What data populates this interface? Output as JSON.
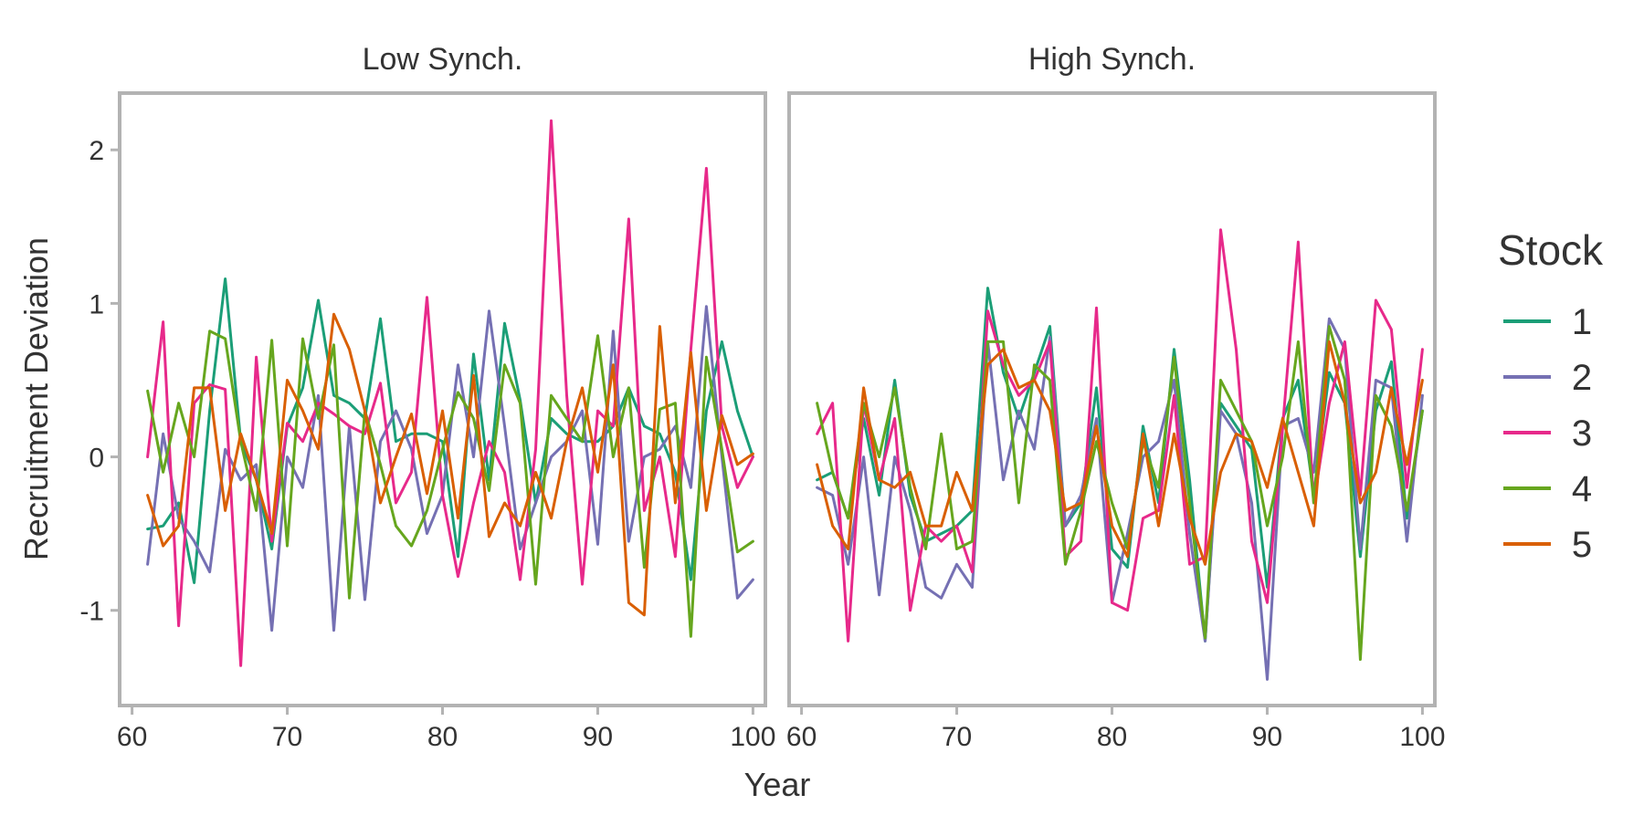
{
  "chart_data": {
    "type": "line",
    "xlabel": "Year",
    "ylabel": "Recruitment Deviation",
    "xlim": [
      59.2,
      100.8
    ],
    "ylim": [
      -1.62,
      2.37
    ],
    "x_ticks": [
      60,
      70,
      80,
      90,
      100
    ],
    "y_ticks": [
      -1,
      0,
      1,
      2
    ],
    "y_tick_labels": [
      "-1",
      "0",
      "1",
      "2"
    ],
    "grid": false,
    "legend": {
      "title": "Stock",
      "position": "right",
      "entries": [
        "1",
        "2",
        "3",
        "4",
        "5"
      ]
    },
    "colors": [
      "#1b9e77",
      "#7570b3",
      "#e7298a",
      "#66a61e",
      "#d95f02"
    ],
    "x": [
      61,
      62,
      63,
      64,
      65,
      66,
      67,
      68,
      69,
      70,
      71,
      72,
      73,
      74,
      75,
      76,
      77,
      78,
      79,
      80,
      81,
      82,
      83,
      84,
      85,
      86,
      87,
      88,
      89,
      90,
      91,
      92,
      93,
      94,
      95,
      96,
      97,
      98,
      99,
      100
    ],
    "panels": [
      {
        "title": "Low Synch.",
        "series": [
          {
            "name": "1",
            "values": [
              -0.47,
              -0.45,
              -0.3,
              -0.82,
              0.3,
              1.16,
              0.1,
              -0.15,
              -0.6,
              0.2,
              0.45,
              1.02,
              0.4,
              0.35,
              0.25,
              0.9,
              0.1,
              0.15,
              0.15,
              0.1,
              -0.65,
              0.67,
              -0.15,
              0.87,
              0.37,
              -0.3,
              0.25,
              0.15,
              0.1,
              0.1,
              0.2,
              0.45,
              0.2,
              0.15,
              -0.1,
              -0.8,
              0.3,
              0.75,
              0.3,
              0.0
            ]
          },
          {
            "name": "2",
            "values": [
              -0.7,
              0.15,
              -0.4,
              -0.55,
              -0.75,
              0.05,
              -0.15,
              -0.05,
              -1.13,
              0.0,
              -0.2,
              0.4,
              -1.13,
              0.2,
              -0.93,
              0.1,
              0.3,
              0.05,
              -0.5,
              -0.25,
              0.6,
              0.0,
              0.95,
              0.2,
              -0.6,
              -0.3,
              0.0,
              0.1,
              0.3,
              -0.57,
              0.82,
              -0.55,
              0.0,
              0.05,
              0.2,
              -0.2,
              0.98,
              0.0,
              -0.92,
              -0.8
            ]
          },
          {
            "name": "3",
            "values": [
              0.0,
              0.88,
              -1.1,
              0.35,
              0.47,
              0.44,
              -1.36,
              0.65,
              -0.55,
              0.22,
              0.1,
              0.35,
              0.28,
              0.2,
              0.15,
              0.48,
              -0.3,
              -0.1,
              1.04,
              -0.25,
              -0.78,
              -0.3,
              0.1,
              -0.1,
              -0.8,
              0.05,
              2.19,
              0.4,
              -0.83,
              0.3,
              0.2,
              1.55,
              -0.35,
              0.0,
              -0.65,
              0.7,
              1.88,
              0.2,
              -0.2,
              0.0
            ]
          },
          {
            "name": "4",
            "values": [
              0.43,
              -0.1,
              0.35,
              0.0,
              0.82,
              0.77,
              0.1,
              -0.35,
              0.76,
              -0.58,
              0.77,
              0.25,
              0.73,
              -0.92,
              0.3,
              -0.05,
              -0.45,
              -0.58,
              -0.35,
              0.05,
              0.42,
              0.25,
              -0.22,
              0.6,
              0.35,
              -0.83,
              0.4,
              0.25,
              0.1,
              0.79,
              0.0,
              0.45,
              -0.72,
              0.31,
              0.35,
              -1.17,
              0.65,
              0.05,
              -0.62,
              -0.55
            ]
          },
          {
            "name": "5",
            "values": [
              -0.25,
              -0.58,
              -0.45,
              0.45,
              0.45,
              -0.35,
              0.15,
              -0.15,
              -0.5,
              0.5,
              0.3,
              0.05,
              0.93,
              0.7,
              0.3,
              -0.3,
              0.0,
              0.28,
              -0.24,
              0.3,
              -0.4,
              0.53,
              -0.52,
              -0.3,
              -0.45,
              -0.1,
              -0.4,
              0.1,
              0.45,
              -0.1,
              0.6,
              -0.95,
              -1.03,
              0.85,
              -0.3,
              0.68,
              -0.35,
              0.27,
              -0.05,
              0.02
            ]
          }
        ]
      },
      {
        "title": "High Synch.",
        "series": [
          {
            "name": "1",
            "values": [
              -0.15,
              -0.1,
              -0.4,
              0.25,
              -0.25,
              0.5,
              -0.25,
              -0.55,
              -0.5,
              -0.45,
              -0.35,
              1.1,
              0.55,
              0.25,
              0.55,
              0.85,
              -0.45,
              -0.3,
              0.45,
              -0.6,
              -0.72,
              0.2,
              -0.3,
              0.7,
              -0.15,
              -1.2,
              0.35,
              0.2,
              0.05,
              -0.85,
              0.25,
              0.5,
              -0.25,
              0.55,
              0.35,
              -0.65,
              0.3,
              0.62,
              -0.4,
              0.3
            ]
          },
          {
            "name": "2",
            "values": [
              -0.2,
              -0.25,
              -0.7,
              0.0,
              -0.9,
              0.0,
              -0.35,
              -0.85,
              -0.92,
              -0.7,
              -0.85,
              0.75,
              -0.15,
              0.3,
              0.05,
              0.78,
              -0.45,
              -0.25,
              0.25,
              -0.95,
              -0.5,
              0.0,
              0.1,
              0.5,
              -0.5,
              -1.2,
              0.3,
              0.15,
              -0.3,
              -1.45,
              0.2,
              0.25,
              -0.1,
              0.9,
              0.7,
              -0.6,
              0.5,
              0.45,
              -0.55,
              0.4
            ]
          },
          {
            "name": "3",
            "values": [
              0.15,
              0.35,
              -1.2,
              0.35,
              -0.15,
              0.25,
              -1.0,
              -0.45,
              -0.55,
              -0.45,
              -0.75,
              0.95,
              0.6,
              0.4,
              0.5,
              0.75,
              -0.65,
              -0.55,
              0.97,
              -0.95,
              -1.0,
              -0.4,
              -0.35,
              0.4,
              -0.7,
              -0.65,
              1.48,
              0.7,
              -0.55,
              -0.95,
              0.2,
              1.4,
              -0.3,
              0.35,
              0.75,
              -0.25,
              1.02,
              0.83,
              -0.2,
              0.7
            ]
          },
          {
            "name": "4",
            "values": [
              0.35,
              -0.1,
              -0.4,
              0.35,
              0.0,
              0.45,
              -0.2,
              -0.6,
              0.15,
              -0.6,
              -0.55,
              0.75,
              0.75,
              -0.3,
              0.6,
              0.5,
              -0.7,
              -0.35,
              0.1,
              -0.3,
              -0.6,
              0.1,
              -0.2,
              0.65,
              -0.3,
              -1.18,
              0.5,
              0.3,
              0.1,
              -0.45,
              0.0,
              0.75,
              -0.3,
              0.85,
              0.5,
              -1.32,
              0.4,
              0.2,
              -0.35,
              0.3
            ]
          },
          {
            "name": "5",
            "values": [
              -0.05,
              -0.45,
              -0.6,
              0.45,
              -0.15,
              -0.2,
              -0.1,
              -0.45,
              -0.45,
              -0.1,
              -0.35,
              0.6,
              0.7,
              0.45,
              0.5,
              0.3,
              -0.35,
              -0.3,
              0.2,
              -0.45,
              -0.65,
              0.15,
              -0.45,
              0.15,
              -0.4,
              -0.7,
              -0.1,
              0.15,
              0.1,
              -0.2,
              0.25,
              -0.1,
              -0.45,
              0.75,
              0.35,
              -0.3,
              -0.1,
              0.45,
              -0.05,
              0.5
            ]
          }
        ]
      }
    ]
  }
}
